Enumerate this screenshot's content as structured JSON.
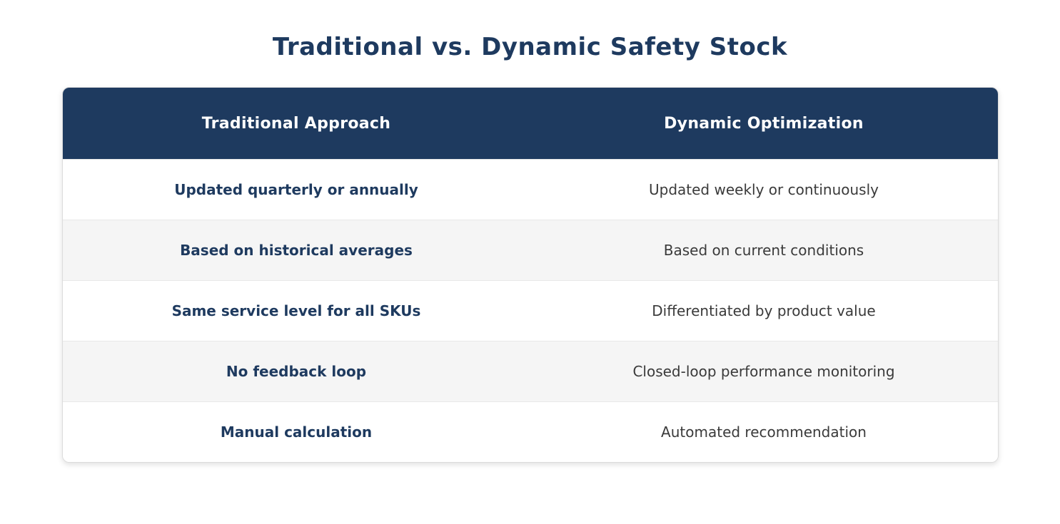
{
  "page": {
    "title": "Traditional vs. Dynamic Safety Stock"
  },
  "colors": {
    "header_bg": "#1e3a5f",
    "header_text": "#ffffff",
    "title_text": "#1e3a5f",
    "left_column_text": "#1e3a5f",
    "right_column_text": "#3a3a3a",
    "row_bg": "#ffffff",
    "row_alt_bg": "#f5f5f5",
    "card_border": "#dcdcdc"
  },
  "chart_data": {
    "type": "table",
    "title": "Traditional vs. Dynamic Safety Stock",
    "columns": [
      "Traditional Approach",
      "Dynamic Optimization"
    ],
    "rows": [
      [
        "Updated quarterly or annually",
        "Updated weekly or continuously"
      ],
      [
        "Based on historical averages",
        "Based on current conditions"
      ],
      [
        "Same service level for all SKUs",
        "Differentiated by product value"
      ],
      [
        "No feedback loop",
        "Closed-loop performance monitoring"
      ],
      [
        "Manual calculation",
        "Automated recommendation"
      ]
    ],
    "legend_position": "none",
    "grid": false
  }
}
